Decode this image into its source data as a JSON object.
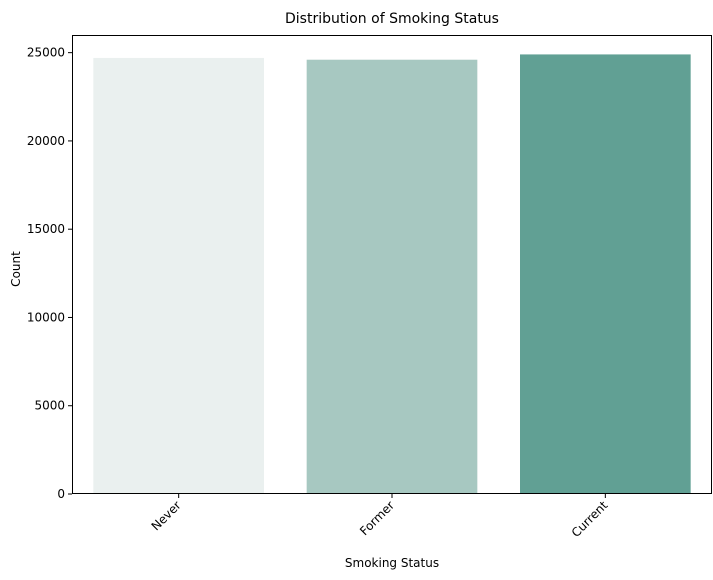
{
  "chart_data": {
    "type": "bar",
    "title": "Distribution of Smoking Status",
    "xlabel": "Smoking Status",
    "ylabel": "Count",
    "categories": [
      "Never",
      "Former",
      "Current"
    ],
    "values": [
      24700,
      24600,
      24900
    ],
    "colors": [
      "#eaf0ef",
      "#a7c8c1",
      "#61a094"
    ],
    "ylim": [
      0,
      26000
    ],
    "yticks": [
      0,
      5000,
      10000,
      15000,
      20000,
      25000
    ],
    "grid": false,
    "legend": "none"
  }
}
